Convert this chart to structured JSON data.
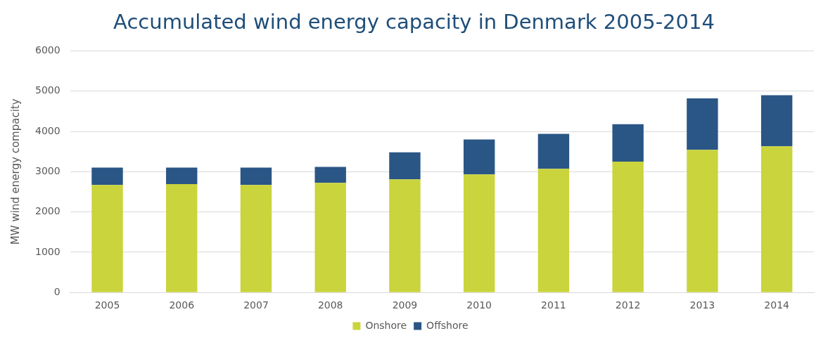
{
  "chart_data": {
    "type": "bar",
    "title": "Accumulated wind energy capacity in Denmark 2005-2014",
    "ylabel": "MW wind energy compacity",
    "categories": [
      "2005",
      "2006",
      "2007",
      "2008",
      "2009",
      "2010",
      "2011",
      "2012",
      "2013",
      "2014"
    ],
    "stacked": true,
    "series": [
      {
        "name": "Onshore",
        "color": "#cad43c",
        "values": [
          2670,
          2690,
          2670,
          2720,
          2810,
          2930,
          3070,
          3250,
          3540,
          3630
        ]
      },
      {
        "name": "Offshore",
        "color": "#2a5686",
        "values": [
          430,
          410,
          430,
          400,
          670,
          870,
          870,
          930,
          1280,
          1270
        ]
      }
    ],
    "ylim": [
      0,
      6000
    ],
    "yticks": [
      0,
      1000,
      2000,
      3000,
      4000,
      5000,
      6000
    ],
    "grid": "y",
    "legend": "bottom"
  }
}
